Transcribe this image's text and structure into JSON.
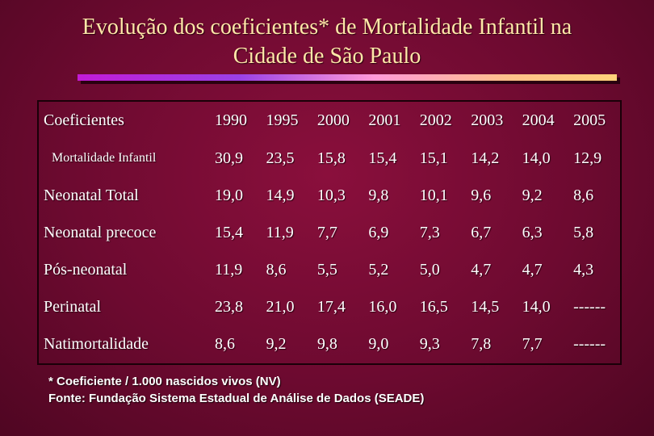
{
  "title": {
    "line1": "Evolução dos coeficientes* de Mortalidade Infantil na",
    "line2": "Cidade de São Paulo"
  },
  "table": {
    "header_label": "Coeficientes",
    "years": [
      "1990",
      "1995",
      "2000",
      "2001",
      "2002",
      "2003",
      "2004",
      "2005"
    ],
    "rows": [
      {
        "label": "Mortalidade   Infantil",
        "values": [
          "30,9",
          "23,5",
          "15,8",
          "15,4",
          "15,1",
          "14,2",
          "14,0",
          "12,9"
        ]
      },
      {
        "label": "Neonatal Total",
        "values": [
          "19,0",
          "14,9",
          "10,3",
          "9,8",
          "10,1",
          "9,6",
          "9,2",
          "8,6"
        ]
      },
      {
        "label": "Neonatal precoce",
        "values": [
          "15,4",
          "11,9",
          "7,7",
          "6,9",
          "7,3",
          "6,7",
          "6,3",
          "5,8"
        ]
      },
      {
        "label": "Pós-neonatal",
        "values": [
          "11,9",
          "8,6",
          "5,5",
          "5,2",
          "5,0",
          "4,7",
          "4,7",
          "4,3"
        ]
      },
      {
        "label": "Perinatal",
        "values": [
          "23,8",
          "21,0",
          "17,4",
          "16,0",
          "16,5",
          "14,5",
          "14,0",
          "------"
        ]
      },
      {
        "label": "Natimortalidade",
        "values": [
          "8,6",
          "9,2",
          "9,8",
          "9,0",
          "9,3",
          "7,8",
          "7,7",
          "------"
        ]
      }
    ]
  },
  "footnote": {
    "line1": "* Coeficiente / 1.000 nascidos vivos (NV)",
    "line2": "Fonte: Fundação Sistema Estadual de Análise de Dados (SEADE)"
  },
  "colors": {
    "background": "#6d0a30",
    "title_text": "#ffe7a8",
    "table_text": "#ffffff"
  }
}
